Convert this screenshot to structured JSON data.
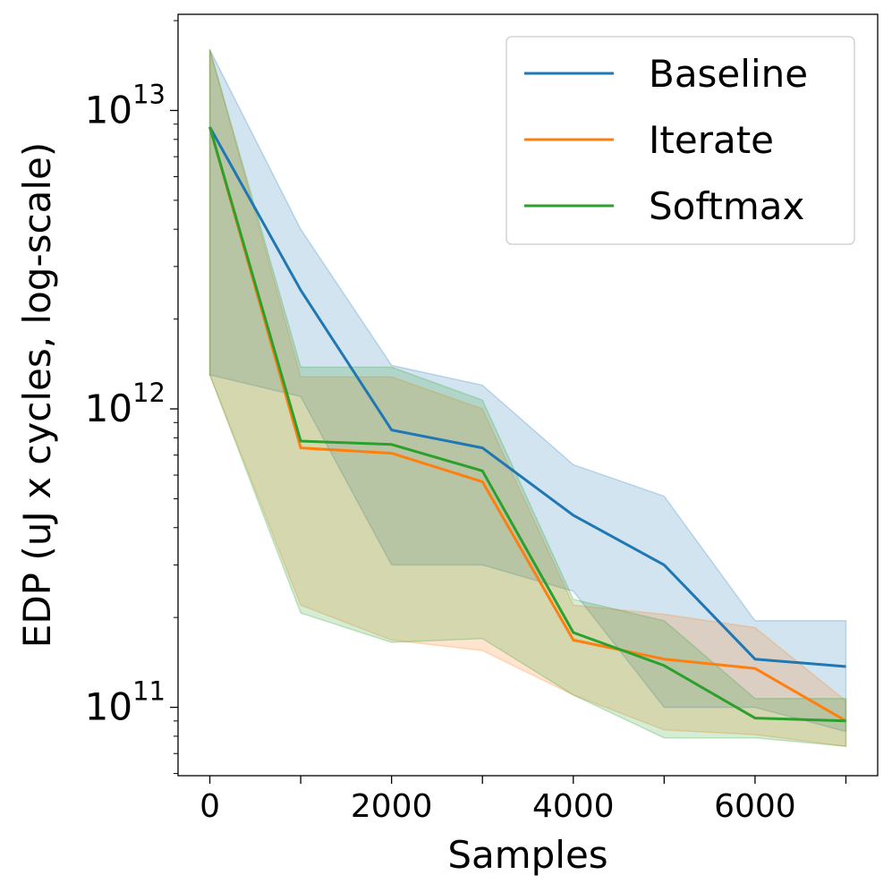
{
  "chart_data": {
    "type": "line",
    "title": "",
    "xlabel": "Samples",
    "ylabel": "EDP (uJ x cycles, log-scale)",
    "yscale": "log",
    "xlim": [
      -350,
      7350
    ],
    "ylim": [
      59000000000.0,
      21000000000000.0
    ],
    "x": [
      0,
      1000,
      2000,
      3000,
      4000,
      5000,
      6000,
      7000
    ],
    "xticks": [
      {
        "value": 0,
        "label": "0"
      },
      {
        "value": 2000,
        "label": "2000"
      },
      {
        "value": 4000,
        "label": "4000"
      },
      {
        "value": 6000,
        "label": "6000"
      }
    ],
    "yticks": [
      {
        "value": 100000000000.0,
        "base": "10",
        "exp": "11"
      },
      {
        "value": 1000000000000.0,
        "base": "10",
        "exp": "12"
      },
      {
        "value": 10000000000000.0,
        "base": "10",
        "exp": "13"
      }
    ],
    "legend_position": "top-right",
    "series": [
      {
        "name": "Baseline",
        "color": "#1f77b4",
        "fill_color": "#1f77b4",
        "values": [
          8800000000000.0,
          2500000000000.0,
          850000000000.0,
          740000000000.0,
          440000000000.0,
          300000000000.0,
          145000000000.0,
          137000000000.0
        ],
        "lower": [
          1300000000000.0,
          1100000000000.0,
          300000000000.0,
          300000000000.0,
          245000000000.0,
          100000000000.0,
          100000000000.0,
          83000000000.0
        ],
        "upper": [
          16000000000000.0,
          4000000000000.0,
          1400000000000.0,
          1200000000000.0,
          650000000000.0,
          510000000000.0,
          195000000000.0,
          195000000000.0
        ]
      },
      {
        "name": "Iterate",
        "color": "#ff7f0e",
        "fill_color": "#ff7f0e",
        "values": [
          8800000000000.0,
          740000000000.0,
          710000000000.0,
          570000000000.0,
          168000000000.0,
          145000000000.0,
          135000000000.0,
          90000000000.0
        ],
        "lower": [
          1300000000000.0,
          220000000000.0,
          168000000000.0,
          155000000000.0,
          110000000000.0,
          84000000000.0,
          81000000000.0,
          74000000000.0
        ],
        "upper": [
          16000000000000.0,
          1280000000000.0,
          1280000000000.0,
          1000000000000.0,
          220000000000.0,
          205000000000.0,
          185000000000.0,
          105000000000.0
        ]
      },
      {
        "name": "Softmax",
        "color": "#2ca02c",
        "fill_color": "#2ca02c",
        "values": [
          8800000000000.0,
          780000000000.0,
          760000000000.0,
          620000000000.0,
          178000000000.0,
          138000000000.0,
          92000000000.0,
          90000000000.0
        ],
        "lower": [
          1300000000000.0,
          207000000000.0,
          165000000000.0,
          170000000000.0,
          110000000000.0,
          79000000000.0,
          79000000000.0,
          74000000000.0
        ],
        "upper": [
          16000000000000.0,
          1380000000000.0,
          1380000000000.0,
          1070000000000.0,
          230000000000.0,
          195000000000.0,
          107000000000.0,
          107000000000.0
        ]
      }
    ]
  }
}
